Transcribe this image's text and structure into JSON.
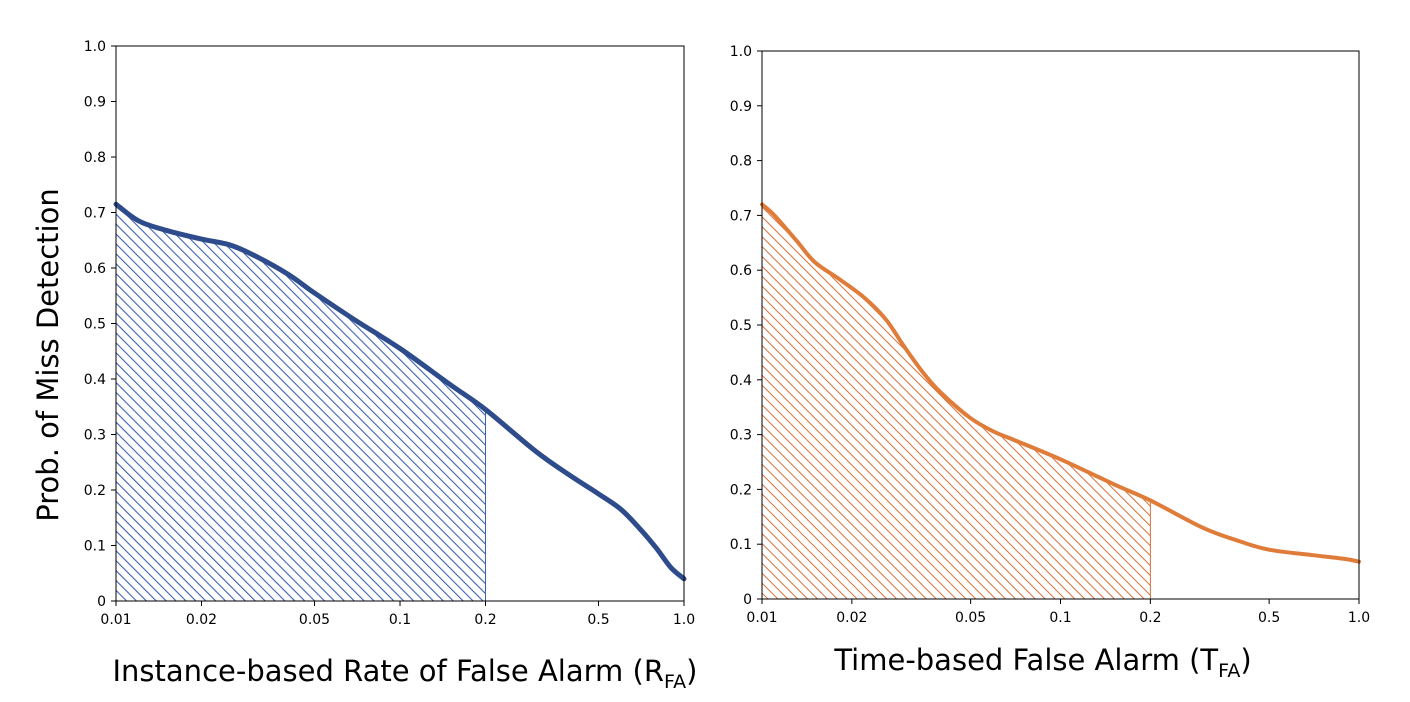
{
  "y_axis_label": "Prob. of Miss Detection",
  "chart_data": [
    {
      "type": "area",
      "xscale": "log",
      "xlim": [
        0.01,
        1.0
      ],
      "ylim": [
        0,
        1.0
      ],
      "xlabel": "Instance-based Rate of False Alarm (R",
      "xlabel_sub": "FA",
      "xlabel_close": ")",
      "xticks": [
        {
          "v": 0.01,
          "label": "0.01"
        },
        {
          "v": 0.02,
          "label": "0.02"
        },
        {
          "v": 0.05,
          "label": "0.05"
        },
        {
          "v": 0.1,
          "label": "0.1"
        },
        {
          "v": 0.2,
          "label": "0.2"
        },
        {
          "v": 0.5,
          "label": "0.5"
        },
        {
          "v": 1.0,
          "label": "1.0"
        }
      ],
      "yticks": [
        {
          "v": 0,
          "label": "0"
        },
        {
          "v": 0.1,
          "label": "0.1"
        },
        {
          "v": 0.2,
          "label": "0.2"
        },
        {
          "v": 0.3,
          "label": "0.3"
        },
        {
          "v": 0.4,
          "label": "0.4"
        },
        {
          "v": 0.5,
          "label": "0.5"
        },
        {
          "v": 0.6,
          "label": "0.6"
        },
        {
          "v": 0.7,
          "label": "0.7"
        },
        {
          "v": 0.8,
          "label": "0.8"
        },
        {
          "v": 0.9,
          "label": "0.9"
        },
        {
          "v": 1.0,
          "label": "1.0"
        }
      ],
      "color": "#2e4b8c",
      "hatch_color": "#3d62b0",
      "shade_until": 0.2,
      "points": [
        [
          0.01,
          0.715
        ],
        [
          0.012,
          0.685
        ],
        [
          0.015,
          0.668
        ],
        [
          0.02,
          0.652
        ],
        [
          0.025,
          0.642
        ],
        [
          0.03,
          0.625
        ],
        [
          0.04,
          0.59
        ],
        [
          0.05,
          0.555
        ],
        [
          0.07,
          0.505
        ],
        [
          0.1,
          0.455
        ],
        [
          0.15,
          0.39
        ],
        [
          0.2,
          0.345
        ],
        [
          0.3,
          0.27
        ],
        [
          0.4,
          0.225
        ],
        [
          0.5,
          0.193
        ],
        [
          0.6,
          0.165
        ],
        [
          0.7,
          0.13
        ],
        [
          0.8,
          0.095
        ],
        [
          0.9,
          0.06
        ],
        [
          1.0,
          0.04
        ]
      ]
    },
    {
      "type": "area",
      "xscale": "log",
      "xlim": [
        0.01,
        1.0
      ],
      "ylim": [
        0,
        1.0
      ],
      "xlabel": "Time-based False Alarm (T",
      "xlabel_sub": "FA",
      "xlabel_close": ")",
      "xticks": [
        {
          "v": 0.01,
          "label": "0.01"
        },
        {
          "v": 0.02,
          "label": "0.02"
        },
        {
          "v": 0.05,
          "label": "0.05"
        },
        {
          "v": 0.1,
          "label": "0.1"
        },
        {
          "v": 0.2,
          "label": "0.2"
        },
        {
          "v": 0.5,
          "label": "0.5"
        },
        {
          "v": 1.0,
          "label": "1.0"
        }
      ],
      "yticks": [
        {
          "v": 0,
          "label": "0"
        },
        {
          "v": 0.1,
          "label": "0.1"
        },
        {
          "v": 0.2,
          "label": "0.2"
        },
        {
          "v": 0.3,
          "label": "0.3"
        },
        {
          "v": 0.4,
          "label": "0.4"
        },
        {
          "v": 0.5,
          "label": "0.5"
        },
        {
          "v": 0.6,
          "label": "0.6"
        },
        {
          "v": 0.7,
          "label": "0.7"
        },
        {
          "v": 0.8,
          "label": "0.8"
        },
        {
          "v": 0.9,
          "label": "0.9"
        },
        {
          "v": 1.0,
          "label": "1.0"
        }
      ],
      "color": "#e07c3a",
      "hatch_color": "#d8703a",
      "shade_until": 0.2,
      "points": [
        [
          0.01,
          0.72
        ],
        [
          0.011,
          0.7
        ],
        [
          0.013,
          0.655
        ],
        [
          0.015,
          0.615
        ],
        [
          0.018,
          0.585
        ],
        [
          0.022,
          0.55
        ],
        [
          0.026,
          0.51
        ],
        [
          0.03,
          0.46
        ],
        [
          0.035,
          0.41
        ],
        [
          0.04,
          0.375
        ],
        [
          0.05,
          0.33
        ],
        [
          0.06,
          0.305
        ],
        [
          0.07,
          0.29
        ],
        [
          0.1,
          0.255
        ],
        [
          0.15,
          0.21
        ],
        [
          0.2,
          0.18
        ],
        [
          0.3,
          0.13
        ],
        [
          0.4,
          0.105
        ],
        [
          0.5,
          0.09
        ],
        [
          0.7,
          0.08
        ],
        [
          0.9,
          0.073
        ],
        [
          1.0,
          0.068
        ]
      ]
    }
  ]
}
